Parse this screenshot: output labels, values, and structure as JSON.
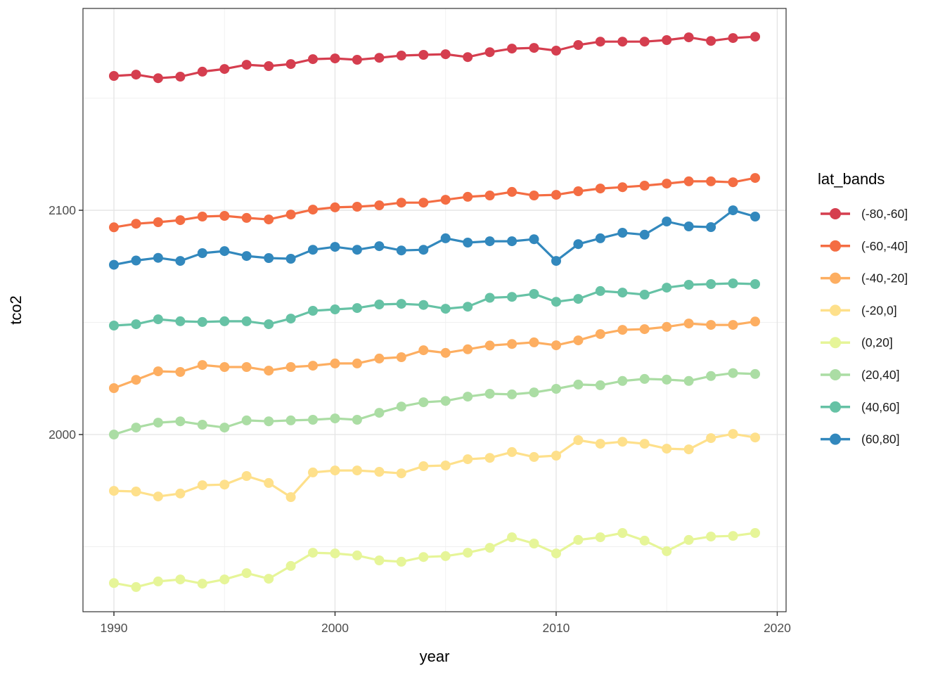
{
  "chart_data": {
    "type": "line",
    "title": "",
    "xlabel": "year",
    "ylabel": "tco2",
    "legend_title": "lat_bands",
    "legend_position": "right",
    "grid": true,
    "marker": "circle",
    "xlim": [
      1988.6,
      2020.4
    ],
    "ylim": [
      1921,
      2190
    ],
    "x_major_ticks": [
      1990,
      2000,
      2010,
      2020
    ],
    "x_minor_ticks": [
      1995,
      2005,
      2015
    ],
    "y_major_ticks": [
      2000,
      2100
    ],
    "y_minor_ticks": [
      1950,
      2050,
      2150
    ],
    "x": [
      1990,
      1991,
      1992,
      1993,
      1994,
      1995,
      1996,
      1997,
      1998,
      1999,
      2000,
      2001,
      2002,
      2003,
      2004,
      2005,
      2006,
      2007,
      2008,
      2009,
      2010,
      2011,
      2012,
      2013,
      2014,
      2015,
      2016,
      2017,
      2018,
      2019
    ],
    "series": [
      {
        "name": "(-80,-60]",
        "color": "#D53E4F",
        "values": [
          2159.9,
          2160.5,
          2158.9,
          2159.6,
          2161.8,
          2163.0,
          2164.9,
          2164.3,
          2165.2,
          2167.4,
          2167.7,
          2167.1,
          2168.0,
          2169.0,
          2169.3,
          2169.6,
          2168.3,
          2170.5,
          2172.1,
          2172.4,
          2171.2,
          2173.7,
          2175.2,
          2175.2,
          2175.2,
          2175.9,
          2177.1,
          2175.5,
          2176.8,
          2177.4
        ]
      },
      {
        "name": "(-60,-40]",
        "color": "#F46D43",
        "values": [
          2092.4,
          2094.0,
          2094.7,
          2095.6,
          2097.2,
          2097.5,
          2096.6,
          2095.9,
          2098.1,
          2100.3,
          2101.3,
          2101.6,
          2102.2,
          2103.4,
          2103.4,
          2104.7,
          2106.0,
          2106.6,
          2108.2,
          2106.6,
          2106.9,
          2108.5,
          2109.7,
          2110.3,
          2111.0,
          2111.9,
          2112.9,
          2112.9,
          2112.5,
          2114.4
        ]
      },
      {
        "name": "(-40,-20]",
        "color": "#FDAE61",
        "values": [
          2020.7,
          2024.4,
          2028.2,
          2027.9,
          2031.0,
          2030.1,
          2030.1,
          2028.5,
          2030.1,
          2030.7,
          2031.7,
          2031.7,
          2033.9,
          2034.5,
          2037.6,
          2036.4,
          2038.0,
          2039.7,
          2040.4,
          2041.1,
          2039.8,
          2042.0,
          2044.8,
          2046.7,
          2047.0,
          2048.0,
          2049.5,
          2048.9,
          2048.9,
          2050.4
        ]
      },
      {
        "name": "(-20,0]",
        "color": "#FEE08B",
        "values": [
          1974.9,
          1974.6,
          1972.4,
          1973.7,
          1977.4,
          1977.7,
          1981.5,
          1978.4,
          1972.1,
          1983.1,
          1984.0,
          1984.0,
          1983.4,
          1982.7,
          1985.9,
          1986.2,
          1989.0,
          1989.6,
          1992.2,
          1990.0,
          1990.6,
          1997.5,
          1995.9,
          1996.8,
          1995.9,
          1993.7,
          1993.4,
          1998.4,
          2000.3,
          1998.7
        ]
      },
      {
        "name": "(0,20]",
        "color": "#E6F598",
        "values": [
          1933.8,
          1932.0,
          1934.5,
          1935.4,
          1933.5,
          1935.4,
          1938.2,
          1935.7,
          1941.4,
          1947.3,
          1947.0,
          1946.1,
          1943.9,
          1943.3,
          1945.4,
          1945.8,
          1947.3,
          1949.5,
          1954.2,
          1951.4,
          1947.0,
          1953.0,
          1954.2,
          1956.1,
          1952.7,
          1948.0,
          1953.0,
          1954.5,
          1954.8,
          1956.1
        ]
      },
      {
        "name": "(20,40]",
        "color": "#ABDDA4",
        "values": [
          2000.0,
          2003.1,
          2005.3,
          2005.9,
          2004.4,
          2003.1,
          2006.3,
          2005.9,
          2006.3,
          2006.6,
          2007.2,
          2006.6,
          2009.7,
          2012.5,
          2014.4,
          2015.0,
          2016.9,
          2018.2,
          2017.9,
          2018.8,
          2020.4,
          2022.3,
          2022.0,
          2023.9,
          2024.8,
          2024.5,
          2023.9,
          2026.1,
          2027.4,
          2027.0
        ]
      },
      {
        "name": "(40,60]",
        "color": "#66C2A5",
        "values": [
          2048.6,
          2049.2,
          2051.4,
          2050.5,
          2050.2,
          2050.5,
          2050.5,
          2049.2,
          2051.7,
          2055.2,
          2055.8,
          2056.4,
          2058.0,
          2058.3,
          2057.8,
          2056.1,
          2057.0,
          2061.0,
          2061.4,
          2062.7,
          2059.2,
          2060.5,
          2064.0,
          2063.3,
          2062.4,
          2065.5,
          2066.8,
          2067.1,
          2067.4,
          2067.1
        ]
      },
      {
        "name": "(60,80]",
        "color": "#3288BD",
        "values": [
          2075.7,
          2077.6,
          2078.8,
          2077.4,
          2080.9,
          2081.8,
          2079.6,
          2078.7,
          2078.4,
          2082.4,
          2083.7,
          2082.4,
          2084.0,
          2082.1,
          2082.4,
          2087.5,
          2085.6,
          2086.2,
          2086.2,
          2087.1,
          2077.4,
          2084.9,
          2087.5,
          2090.0,
          2089.1,
          2095.0,
          2092.8,
          2092.5,
          2100.0,
          2097.2
        ]
      }
    ]
  }
}
